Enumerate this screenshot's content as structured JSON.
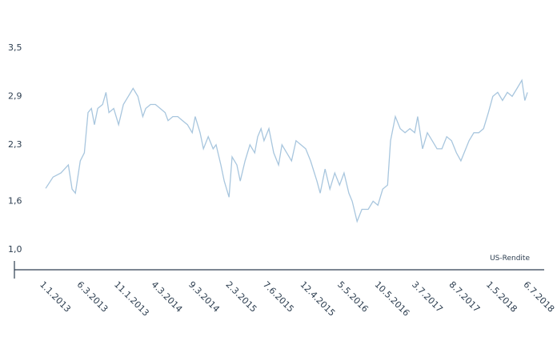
{
  "chart_data": {
    "type": "line",
    "x": [
      0.04,
      0.24,
      0.45,
      0.65,
      0.75,
      0.84,
      0.97,
      1.08,
      1.18,
      1.27,
      1.35,
      1.44,
      1.57,
      1.66,
      1.74,
      1.87,
      2.0,
      2.13,
      2.26,
      2.39,
      2.52,
      2.65,
      2.73,
      2.86,
      2.99,
      3.12,
      3.25,
      3.33,
      3.46,
      3.59,
      3.72,
      3.85,
      3.98,
      4.06,
      4.19,
      4.28,
      4.41,
      4.54,
      4.62,
      4.75,
      4.84,
      4.97,
      5.05,
      5.18,
      5.27,
      5.4,
      5.53,
      5.66,
      5.74,
      5.83,
      5.91,
      6.04,
      6.17,
      6.3,
      6.39,
      6.52,
      6.65,
      6.77,
      6.9,
      7.03,
      7.16,
      7.33,
      7.42,
      7.55,
      7.68,
      7.81,
      7.94,
      8.06,
      8.19,
      8.28,
      8.41,
      8.54,
      8.71,
      8.84,
      8.97,
      9.1,
      9.23,
      9.31,
      9.44,
      9.57,
      9.7,
      9.83,
      9.96,
      10.04,
      10.17,
      10.3,
      10.43,
      10.56,
      10.69,
      10.82,
      10.95,
      11.08,
      11.2,
      11.29,
      11.42,
      11.55,
      11.68,
      11.81,
      11.94,
      12.06,
      12.19,
      12.32,
      12.45,
      12.58,
      12.71,
      12.84,
      12.92,
      12.99
    ],
    "series": [
      {
        "name": "US-Rendite",
        "color": "#a8c6de",
        "values": [
          1.76,
          1.9,
          1.95,
          2.05,
          1.75,
          1.7,
          2.1,
          2.2,
          2.7,
          2.75,
          2.55,
          2.75,
          2.8,
          2.95,
          2.7,
          2.75,
          2.55,
          2.8,
          2.9,
          3.0,
          2.9,
          2.65,
          2.75,
          2.8,
          2.8,
          2.75,
          2.7,
          2.6,
          2.65,
          2.65,
          2.6,
          2.55,
          2.45,
          2.65,
          2.45,
          2.25,
          2.4,
          2.25,
          2.3,
          2.05,
          1.85,
          1.65,
          2.15,
          2.05,
          1.85,
          2.1,
          2.3,
          2.2,
          2.4,
          2.5,
          2.35,
          2.5,
          2.2,
          2.05,
          2.3,
          2.2,
          2.1,
          2.35,
          2.3,
          2.25,
          2.1,
          1.85,
          1.7,
          2.0,
          1.75,
          1.95,
          1.8,
          1.95,
          1.7,
          1.6,
          1.35,
          1.5,
          1.5,
          1.6,
          1.55,
          1.75,
          1.8,
          2.35,
          2.65,
          2.5,
          2.45,
          2.5,
          2.45,
          2.65,
          2.25,
          2.45,
          2.35,
          2.25,
          2.25,
          2.4,
          2.35,
          2.2,
          2.1,
          2.2,
          2.35,
          2.45,
          2.45,
          2.5,
          2.7,
          2.9,
          2.95,
          2.85,
          2.95,
          2.9,
          3.0,
          3.1,
          2.85,
          2.95
        ]
      }
    ],
    "xlim": [
      -0.8,
      13.44
    ],
    "xticks": [
      {
        "value": 0,
        "label": "1.1.2013"
      },
      {
        "value": 1,
        "label": "6.3.2013"
      },
      {
        "value": 2,
        "label": "11.1.2013"
      },
      {
        "value": 3,
        "label": "4.3.2014"
      },
      {
        "value": 4,
        "label": "9.3.2014"
      },
      {
        "value": 5,
        "label": "2.3.2015"
      },
      {
        "value": 6,
        "label": "7.6.2015"
      },
      {
        "value": 7,
        "label": "12.4.2015"
      },
      {
        "value": 8,
        "label": "5.5.2016"
      },
      {
        "value": 9,
        "label": "10.5.2016"
      },
      {
        "value": 10,
        "label": "3.7.2017"
      },
      {
        "value": 11,
        "label": "8.7.2017"
      },
      {
        "value": 12,
        "label": "1.5.2018"
      },
      {
        "value": 13,
        "label": "6.7.2018"
      }
    ],
    "ylim": [
      0.75,
      3.5
    ],
    "yticks": [
      {
        "value": 1.0,
        "label": "1,0"
      },
      {
        "value": 1.6,
        "label": "1,6"
      },
      {
        "value": 2.3,
        "label": "2,3"
      },
      {
        "value": 2.9,
        "label": "2,9"
      },
      {
        "value": 3.5,
        "label": "3,5"
      }
    ],
    "grid": false
  }
}
